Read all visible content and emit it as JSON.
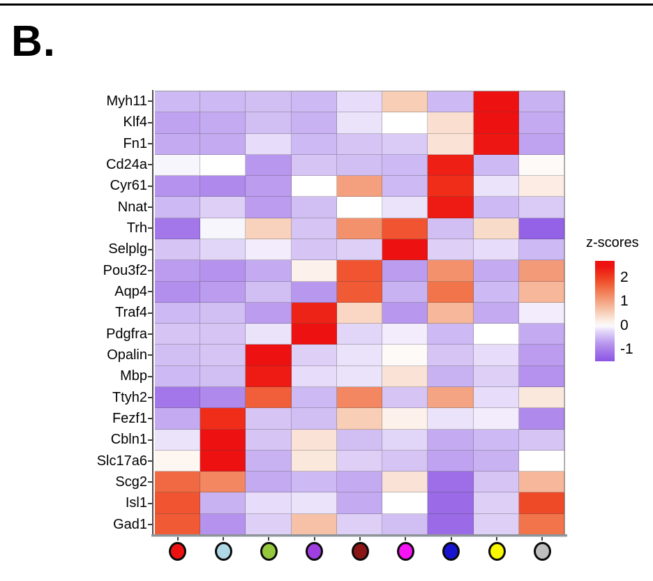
{
  "panel_label": "B.",
  "legend": {
    "title": "z-scores",
    "tick_labels": [
      "2",
      "1",
      "0",
      "-1"
    ],
    "tick_values": [
      2,
      1,
      0,
      -1
    ]
  },
  "chart_data": {
    "type": "heatmap",
    "title": "",
    "value_label": "z-scores",
    "rows": [
      "Myh11",
      "Klf4",
      "Fn1",
      "Cd24a",
      "Cyr61",
      "Nnat",
      "Trh",
      "Selplg",
      "Pou3f2",
      "Aqp4",
      "Traf4",
      "Pdgfra",
      "Opalin",
      "Mbp",
      "Ttyh2",
      "Fezf1",
      "Cbln1",
      "Slc17a6",
      "Scg2",
      "Isl1",
      "Gad1"
    ],
    "columns": [
      "red",
      "light-blue",
      "yellow-green",
      "purple",
      "dark-red",
      "magenta",
      "blue",
      "yellow",
      "gray"
    ],
    "column_dot_colors": [
      "#ee1111",
      "#aed8e6",
      "#96c83e",
      "#a03fe0",
      "#8b1616",
      "#f414f4",
      "#1713cf",
      "#f8f800",
      "#bfbfbf"
    ],
    "values": [
      [
        -0.5,
        -0.5,
        -0.45,
        -0.5,
        -0.2,
        0.55,
        -0.5,
        2.5,
        -0.55
      ],
      [
        -0.65,
        -0.6,
        -0.45,
        -0.55,
        -0.15,
        0.0,
        0.35,
        2.5,
        -0.6
      ],
      [
        -0.6,
        -0.6,
        -0.2,
        -0.5,
        -0.4,
        -0.35,
        0.3,
        2.45,
        -0.65
      ],
      [
        -0.05,
        0.0,
        -0.75,
        -0.4,
        -0.45,
        -0.5,
        2.35,
        -0.5,
        0.05
      ],
      [
        -0.8,
        -0.9,
        -0.7,
        0.0,
        1.05,
        -0.5,
        2.2,
        -0.15,
        0.2
      ],
      [
        -0.5,
        -0.3,
        -0.7,
        -0.45,
        0.0,
        -0.15,
        2.4,
        -0.5,
        -0.35
      ],
      [
        -1.1,
        -0.05,
        0.5,
        -0.4,
        1.2,
        1.8,
        -0.45,
        0.4,
        -1.35
      ],
      [
        -0.4,
        -0.25,
        -0.1,
        -0.4,
        -0.3,
        2.5,
        -0.3,
        -0.2,
        -0.5
      ],
      [
        -0.7,
        -0.8,
        -0.6,
        0.15,
        1.8,
        -0.7,
        1.2,
        -0.6,
        1.1
      ],
      [
        -0.85,
        -0.7,
        -0.45,
        -0.75,
        1.75,
        -0.55,
        1.5,
        -0.5,
        0.8
      ],
      [
        -0.5,
        -0.45,
        -0.7,
        2.3,
        0.45,
        -0.75,
        0.8,
        -0.6,
        -0.1
      ],
      [
        -0.4,
        -0.4,
        -0.15,
        2.5,
        -0.25,
        -0.1,
        -0.5,
        0.0,
        -0.6
      ],
      [
        -0.45,
        -0.4,
        2.5,
        -0.3,
        -0.15,
        0.05,
        -0.4,
        -0.2,
        -0.7
      ],
      [
        -0.5,
        -0.45,
        2.4,
        -0.2,
        -0.15,
        0.3,
        -0.55,
        -0.3,
        -0.8
      ],
      [
        -1.1,
        -0.9,
        1.7,
        -0.5,
        1.3,
        -0.4,
        1.0,
        -0.2,
        0.25
      ],
      [
        -0.6,
        2.2,
        -0.4,
        -0.45,
        0.55,
        0.15,
        -0.15,
        -0.1,
        -0.9
      ],
      [
        -0.15,
        2.5,
        -0.4,
        0.3,
        -0.45,
        -0.25,
        -0.6,
        -0.5,
        -0.4
      ],
      [
        0.1,
        2.5,
        -0.55,
        0.25,
        -0.3,
        -0.4,
        -0.65,
        -0.55,
        0.0
      ],
      [
        1.6,
        1.3,
        -0.6,
        -0.5,
        -0.6,
        0.3,
        -1.2,
        -0.4,
        0.8
      ],
      [
        1.8,
        -0.55,
        -0.2,
        -0.15,
        -0.6,
        0.0,
        -1.25,
        -0.3,
        1.9
      ],
      [
        1.75,
        -0.8,
        -0.3,
        0.7,
        -0.3,
        -0.45,
        -1.25,
        -0.3,
        1.5
      ]
    ],
    "color_scale": {
      "stops": [
        [
          -1.5,
          "#8a55e4"
        ],
        [
          -1.0,
          "#a97fea"
        ],
        [
          -0.7,
          "#bb9cef"
        ],
        [
          -0.5,
          "#cdb9f3"
        ],
        [
          -0.3,
          "#decff7"
        ],
        [
          -0.15,
          "#ebe3fa"
        ],
        [
          0.0,
          "#ffffff"
        ],
        [
          0.3,
          "#fae3d6"
        ],
        [
          0.6,
          "#f7cab1"
        ],
        [
          1.0,
          "#f4a483"
        ],
        [
          1.5,
          "#f1744b"
        ],
        [
          2.0,
          "#ef3f1f"
        ],
        [
          2.5,
          "#ee1111"
        ]
      ],
      "legend_domain": [
        2.7,
        -1.5
      ]
    },
    "layout": {
      "grid_on": true,
      "legend_position": "right"
    }
  }
}
